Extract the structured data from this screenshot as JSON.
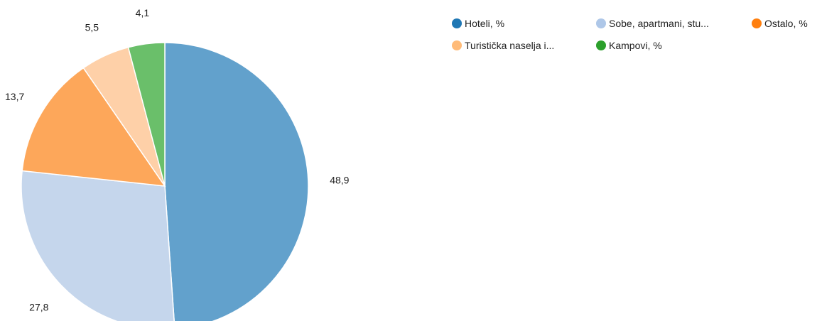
{
  "chart_data": {
    "type": "pie",
    "title": "",
    "slices": [
      {
        "legend_label": "Hoteli, %",
        "value": 48.9,
        "value_label": "48,9",
        "color": "#62a1cc",
        "legend_color": "#1f77b4"
      },
      {
        "legend_label": "Sobe, apartmani, stu...",
        "value": 27.8,
        "value_label": "27,8",
        "color": "#c5d6ec",
        "legend_color": "#aec7e8"
      },
      {
        "legend_label": "Ostalo, %",
        "value": 13.7,
        "value_label": "13,7",
        "color": "#fda75a",
        "legend_color": "#ff7f0e"
      },
      {
        "legend_label": "Turistička naselja i...",
        "value": 5.5,
        "value_label": "5,5",
        "color": "#fed0a8",
        "legend_color": "#ffbb78"
      },
      {
        "legend_label": "Kampovi, %",
        "value": 4.1,
        "value_label": "4,1",
        "color": "#6abf6a",
        "legend_color": "#2ca02c"
      }
    ],
    "legend_position": "top-right"
  }
}
